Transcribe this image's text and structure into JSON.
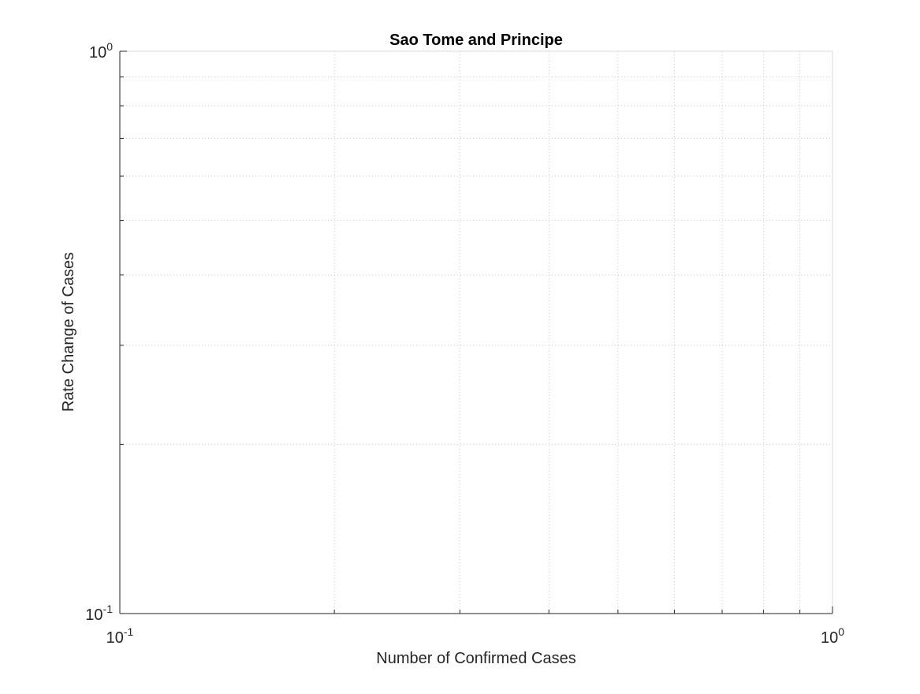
{
  "chart_data": {
    "type": "scatter",
    "title": "Sao Tome and Principe",
    "xlabel": "Number of Confirmed Cases",
    "ylabel": "Rate Change of Cases",
    "xscale": "log",
    "yscale": "log",
    "xlim": [
      0.1,
      1
    ],
    "ylim": [
      0.1,
      1
    ],
    "grid": "on (major and minor, dotted)",
    "x_ticks": [
      {
        "value": 0.1,
        "base": "10",
        "exp": "-1"
      },
      {
        "value": 1,
        "base": "10",
        "exp": "0"
      }
    ],
    "y_ticks": [
      {
        "value": 0.1,
        "base": "10",
        "exp": "-1"
      },
      {
        "value": 1,
        "base": "10",
        "exp": "0"
      }
    ],
    "series": [
      {
        "x": [],
        "y": []
      }
    ]
  }
}
